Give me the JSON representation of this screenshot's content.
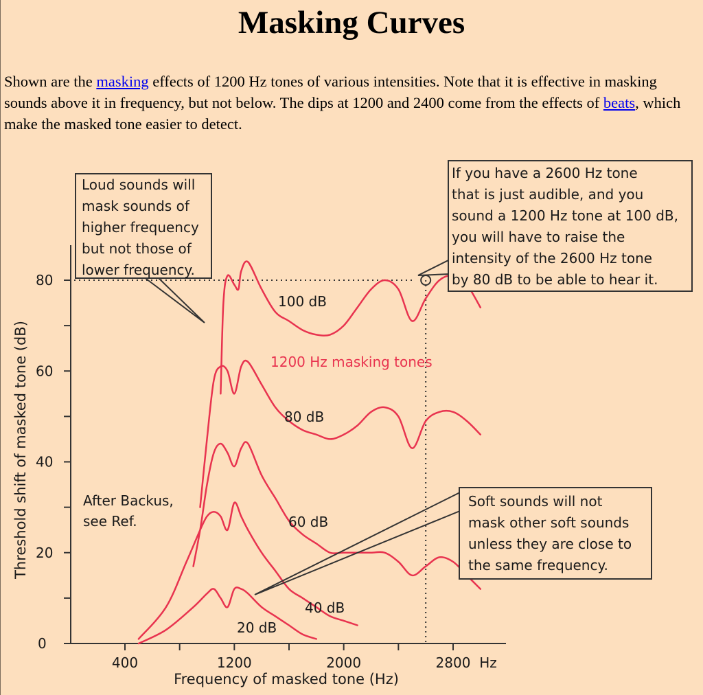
{
  "page": {
    "title": "Masking Curves",
    "intro": {
      "part1": "Shown are the ",
      "link1": "masking",
      "part2": " effects of 1200 Hz tones of various intensities. Note that it is effective in masking sounds above it in frequency, but not below. The dips at 1200 and 2400 come from the effects of ",
      "link2": "beats",
      "part3": ", which make the masked tone easier to detect."
    }
  },
  "chart_data": {
    "type": "line",
    "xlabel": "Frequency of masked tone (Hz)",
    "ylabel": "Threshold shift of masked tone (dB)",
    "x_unit": "Hz",
    "xticks": [
      400,
      1200,
      2000,
      2800
    ],
    "yticks": [
      0,
      20,
      40,
      60,
      80
    ],
    "xlim": [
      0,
      3000
    ],
    "ylim": [
      0,
      90
    ],
    "series_label": "1200 Hz masking tones",
    "series": [
      {
        "name": "20 dB",
        "x": [
          500,
          700,
          900,
          1000,
          1050,
          1100,
          1150,
          1200,
          1250,
          1300,
          1400,
          1500,
          1600,
          1700,
          1800
        ],
        "y": [
          0,
          3,
          8,
          11,
          12,
          10,
          8,
          12,
          12,
          11,
          8,
          6,
          4,
          2,
          1
        ]
      },
      {
        "name": "40 dB",
        "x": [
          500,
          700,
          850,
          950,
          1000,
          1050,
          1100,
          1150,
          1200,
          1250,
          1300,
          1400,
          1500,
          1600,
          1700,
          1800,
          1900,
          2000,
          2100
        ],
        "y": [
          1,
          8,
          18,
          25,
          28,
          29,
          28,
          25,
          31,
          28,
          25,
          20,
          16,
          12,
          10,
          8,
          6,
          5,
          4
        ]
      },
      {
        "name": "60 dB",
        "x": [
          900,
          950,
          1000,
          1050,
          1100,
          1150,
          1200,
          1250,
          1300,
          1400,
          1500,
          1600,
          1700,
          1800,
          1900,
          2000,
          2100,
          2200,
          2300,
          2400,
          2500,
          2600,
          2700,
          2800,
          2900,
          3000
        ],
        "y": [
          17,
          25,
          35,
          42,
          44,
          42,
          39,
          43,
          44,
          37,
          32,
          27,
          24,
          22,
          20,
          20,
          20,
          20,
          20,
          18,
          15,
          17,
          19,
          18,
          15,
          12
        ]
      },
      {
        "name": "80 dB",
        "x": [
          950,
          1000,
          1050,
          1100,
          1150,
          1200,
          1250,
          1300,
          1400,
          1500,
          1600,
          1700,
          1800,
          1900,
          2000,
          2100,
          2200,
          2300,
          2400,
          2500,
          2600,
          2700,
          2800,
          2900,
          3000
        ],
        "y": [
          30,
          45,
          58,
          61,
          60,
          55,
          61,
          62,
          57,
          52,
          49,
          47,
          46,
          45,
          46,
          48,
          51,
          52,
          50,
          43,
          49,
          51,
          51,
          49,
          46
        ]
      },
      {
        "name": "100 dB",
        "x": [
          1100,
          1120,
          1150,
          1200,
          1230,
          1250,
          1300,
          1400,
          1500,
          1600,
          1700,
          1800,
          1900,
          2000,
          2100,
          2200,
          2300,
          2400,
          2500,
          2600,
          2700,
          2800,
          2900,
          3000
        ],
        "y": [
          55,
          75,
          81,
          79,
          78,
          82,
          84,
          78,
          73,
          71,
          69,
          68,
          68,
          70,
          74,
          78,
          80,
          78,
          71,
          76,
          80,
          81,
          79,
          74
        ]
      }
    ],
    "annotations": [
      {
        "text": "Loud sounds will mask sounds of higher frequency but not those of lower frequency."
      },
      {
        "text": "If you have a 2600 Hz tone that is just audible, and you sound a 1200 Hz tone at 100 dB, you will have to raise the intensity of the 2600 Hz tone by 80 dB to be able to hear it."
      },
      {
        "text": "Soft sounds will not mask other soft sounds unless they are close to the same frequency."
      },
      {
        "text": "After Backus, see Ref."
      }
    ],
    "callouts": {
      "box_loud": [
        "Loud sounds will",
        "mask sounds of",
        "higher frequency",
        "but not those of",
        "lower frequency."
      ],
      "box_2600": [
        "If you have a  2600 Hz tone",
        "that is just audible, and you",
        "sound a 1200 Hz tone at 100 dB,",
        "you will have to raise the",
        "intensity of the 2600 Hz tone",
        "by  80 dB to be able to hear it."
      ],
      "box_soft": [
        "Soft sounds will not",
        "mask other soft sounds",
        "unless they are close to",
        "the same frequency."
      ],
      "credit": [
        "After Backus,",
        "see Ref."
      ]
    },
    "colors": {
      "curve": "#e8334f",
      "background": "#fddfbe",
      "text": "#1a1a1a"
    }
  }
}
